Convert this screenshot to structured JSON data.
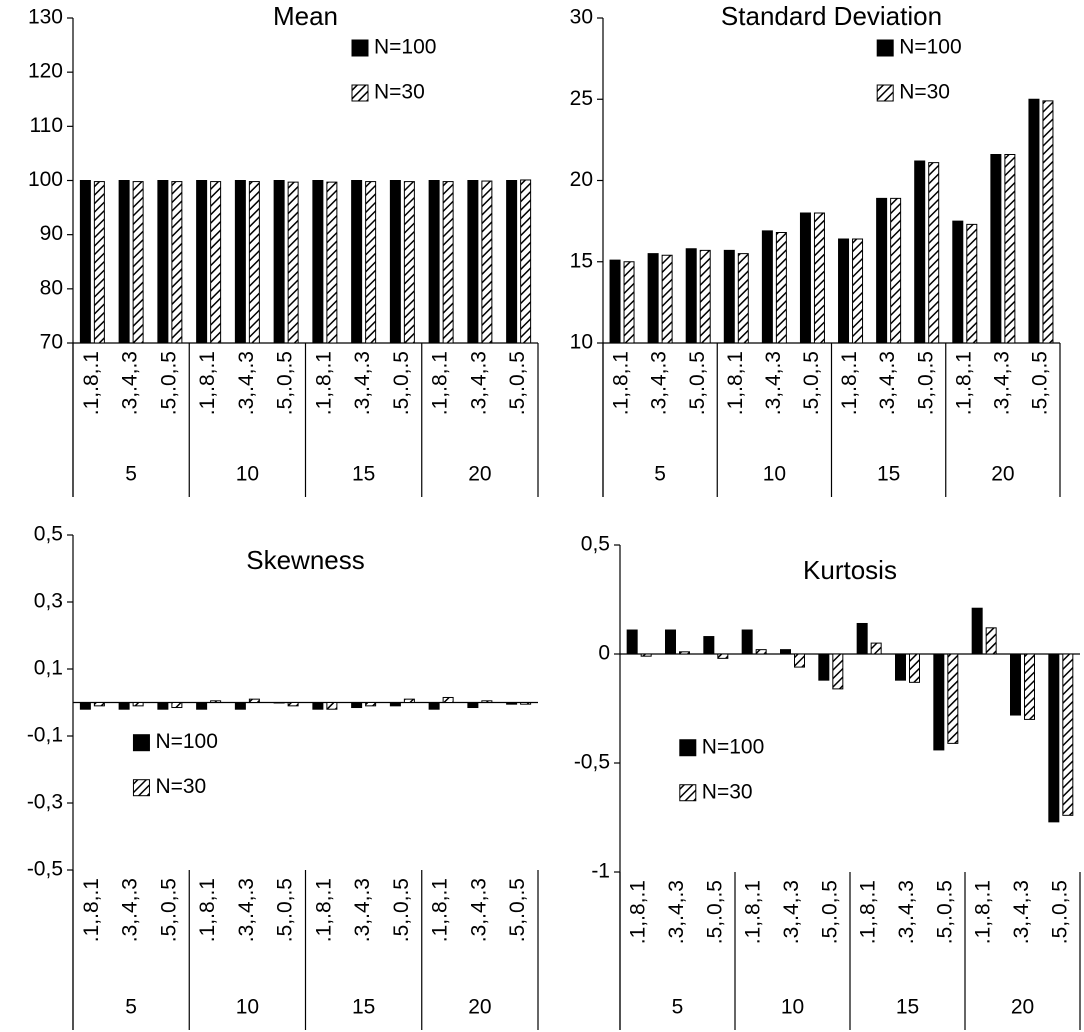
{
  "chart_data": [
    {
      "type": "bar",
      "title": "Mean",
      "categories": [
        ".1,.8,.1",
        ".3,.4,.3",
        ".5,.0,.5",
        ".1,.8,.1",
        ".3,.4,.3",
        ".5,.0,.5",
        ".1,.8,.1",
        ".3,.4,.3",
        ".5,.0,.5",
        ".1,.8,.1",
        ".3,.4,.3",
        ".5,.0,.5"
      ],
      "groups": [
        "5",
        "10",
        "15",
        "20"
      ],
      "series": [
        {
          "name": "N=100",
          "color": "#000000",
          "pattern": "solid",
          "values": [
            100,
            100,
            100,
            100,
            100,
            100,
            100,
            100,
            100,
            100,
            100,
            100
          ]
        },
        {
          "name": "N=30",
          "color": "#000000",
          "pattern": "hatch",
          "values": [
            99.8,
            99.8,
            99.8,
            99.8,
            99.8,
            99.7,
            99.7,
            99.8,
            99.8,
            99.8,
            99.9,
            100.1
          ]
        }
      ],
      "ylim": [
        70,
        130
      ],
      "yticks": [
        70,
        80,
        90,
        100,
        110,
        120,
        130
      ],
      "legend": "upper right"
    },
    {
      "type": "bar",
      "title": "Standard Deviation",
      "categories": [
        ".1,.8,.1",
        ".3,.4,.3",
        ".5,.0,.5",
        ".1,.8,.1",
        ".3,.4,.3",
        ".5,.0,.5",
        ".1,.8,.1",
        ".3,.4,.3",
        ".5,.0,.5",
        ".1,.8,.1",
        ".3,.4,.3",
        ".5,.0,.5"
      ],
      "groups": [
        "5",
        "10",
        "15",
        "20"
      ],
      "series": [
        {
          "name": "N=100",
          "color": "#000000",
          "pattern": "solid",
          "values": [
            15.1,
            15.5,
            15.8,
            15.7,
            16.9,
            18.0,
            16.4,
            18.9,
            21.2,
            17.5,
            21.6,
            25.0
          ]
        },
        {
          "name": "N=30",
          "color": "#000000",
          "pattern": "hatch",
          "values": [
            15.0,
            15.4,
            15.7,
            15.5,
            16.8,
            18.0,
            16.4,
            18.9,
            21.1,
            17.3,
            21.6,
            24.9
          ]
        }
      ],
      "ylim": [
        10,
        30
      ],
      "yticks": [
        10,
        15,
        20,
        25,
        30
      ],
      "legend": "upper right"
    },
    {
      "type": "bar",
      "title": "Skewness",
      "categories": [
        ".1,.8,.1",
        ".3,.4,.3",
        ".5,.0,.5",
        ".1,.8,.1",
        ".3,.4,.3",
        ".5,.0,.5",
        ".1,.8,.1",
        ".3,.4,.3",
        ".5,.0,.5",
        ".1,.8,.1",
        ".3,.4,.3",
        ".5,.0,.5"
      ],
      "groups": [
        "5",
        "10",
        "15",
        "20"
      ],
      "series": [
        {
          "name": "N=100",
          "color": "#000000",
          "pattern": "solid",
          "values": [
            -0.02,
            -0.02,
            -0.02,
            -0.02,
            -0.02,
            0,
            -0.02,
            -0.015,
            -0.01,
            -0.02,
            -0.015,
            -0.005
          ]
        },
        {
          "name": "N=30",
          "color": "#000000",
          "pattern": "hatch",
          "values": [
            -0.01,
            -0.01,
            -0.015,
            0.005,
            0.01,
            -0.01,
            -0.02,
            -0.01,
            0.01,
            0.015,
            0.005,
            -0.005
          ]
        }
      ],
      "ylim": [
        -0.5,
        0.5
      ],
      "yticks": [
        {
          "value": -0.5,
          "label": "-0,5"
        },
        {
          "value": -0.3,
          "label": "-0,3"
        },
        {
          "value": -0.1,
          "label": "-0,1"
        },
        {
          "value": 0.1,
          "label": "0,1"
        },
        {
          "value": 0.3,
          "label": "0,3"
        },
        {
          "value": 0.5,
          "label": "0,5"
        }
      ],
      "legend": "lower left"
    },
    {
      "type": "bar",
      "title": "Kurtosis",
      "categories": [
        ".1,.8,.1",
        ".3,.4,.3",
        ".5,.0,.5",
        ".1,.8,.1",
        ".3,.4,.3",
        ".5,.0,.5",
        ".1,.8,.1",
        ".3,.4,.3",
        ".5,.0,.5",
        ".1,.8,.1",
        ".3,.4,.3",
        ".5,.0,.5"
      ],
      "groups": [
        "5",
        "10",
        "15",
        "20"
      ],
      "series": [
        {
          "name": "N=100",
          "color": "#000000",
          "pattern": "solid",
          "values": [
            0.11,
            0.11,
            0.08,
            0.11,
            0.02,
            -0.12,
            0.14,
            -0.12,
            -0.44,
            0.21,
            -0.28,
            -0.77
          ]
        },
        {
          "name": "N=30",
          "color": "#000000",
          "pattern": "hatch",
          "values": [
            -0.01,
            0.01,
            -0.02,
            0.02,
            -0.06,
            -0.16,
            0.05,
            -0.13,
            -0.41,
            0.12,
            -0.3,
            -0.74
          ]
        }
      ],
      "ylim": [
        -1,
        0.5
      ],
      "yticks": [
        -1,
        {
          "value": -0.5,
          "label": "-0,5"
        },
        0,
        {
          "value": 0.5,
          "label": "0,5"
        }
      ],
      "legend": "lower left"
    }
  ]
}
